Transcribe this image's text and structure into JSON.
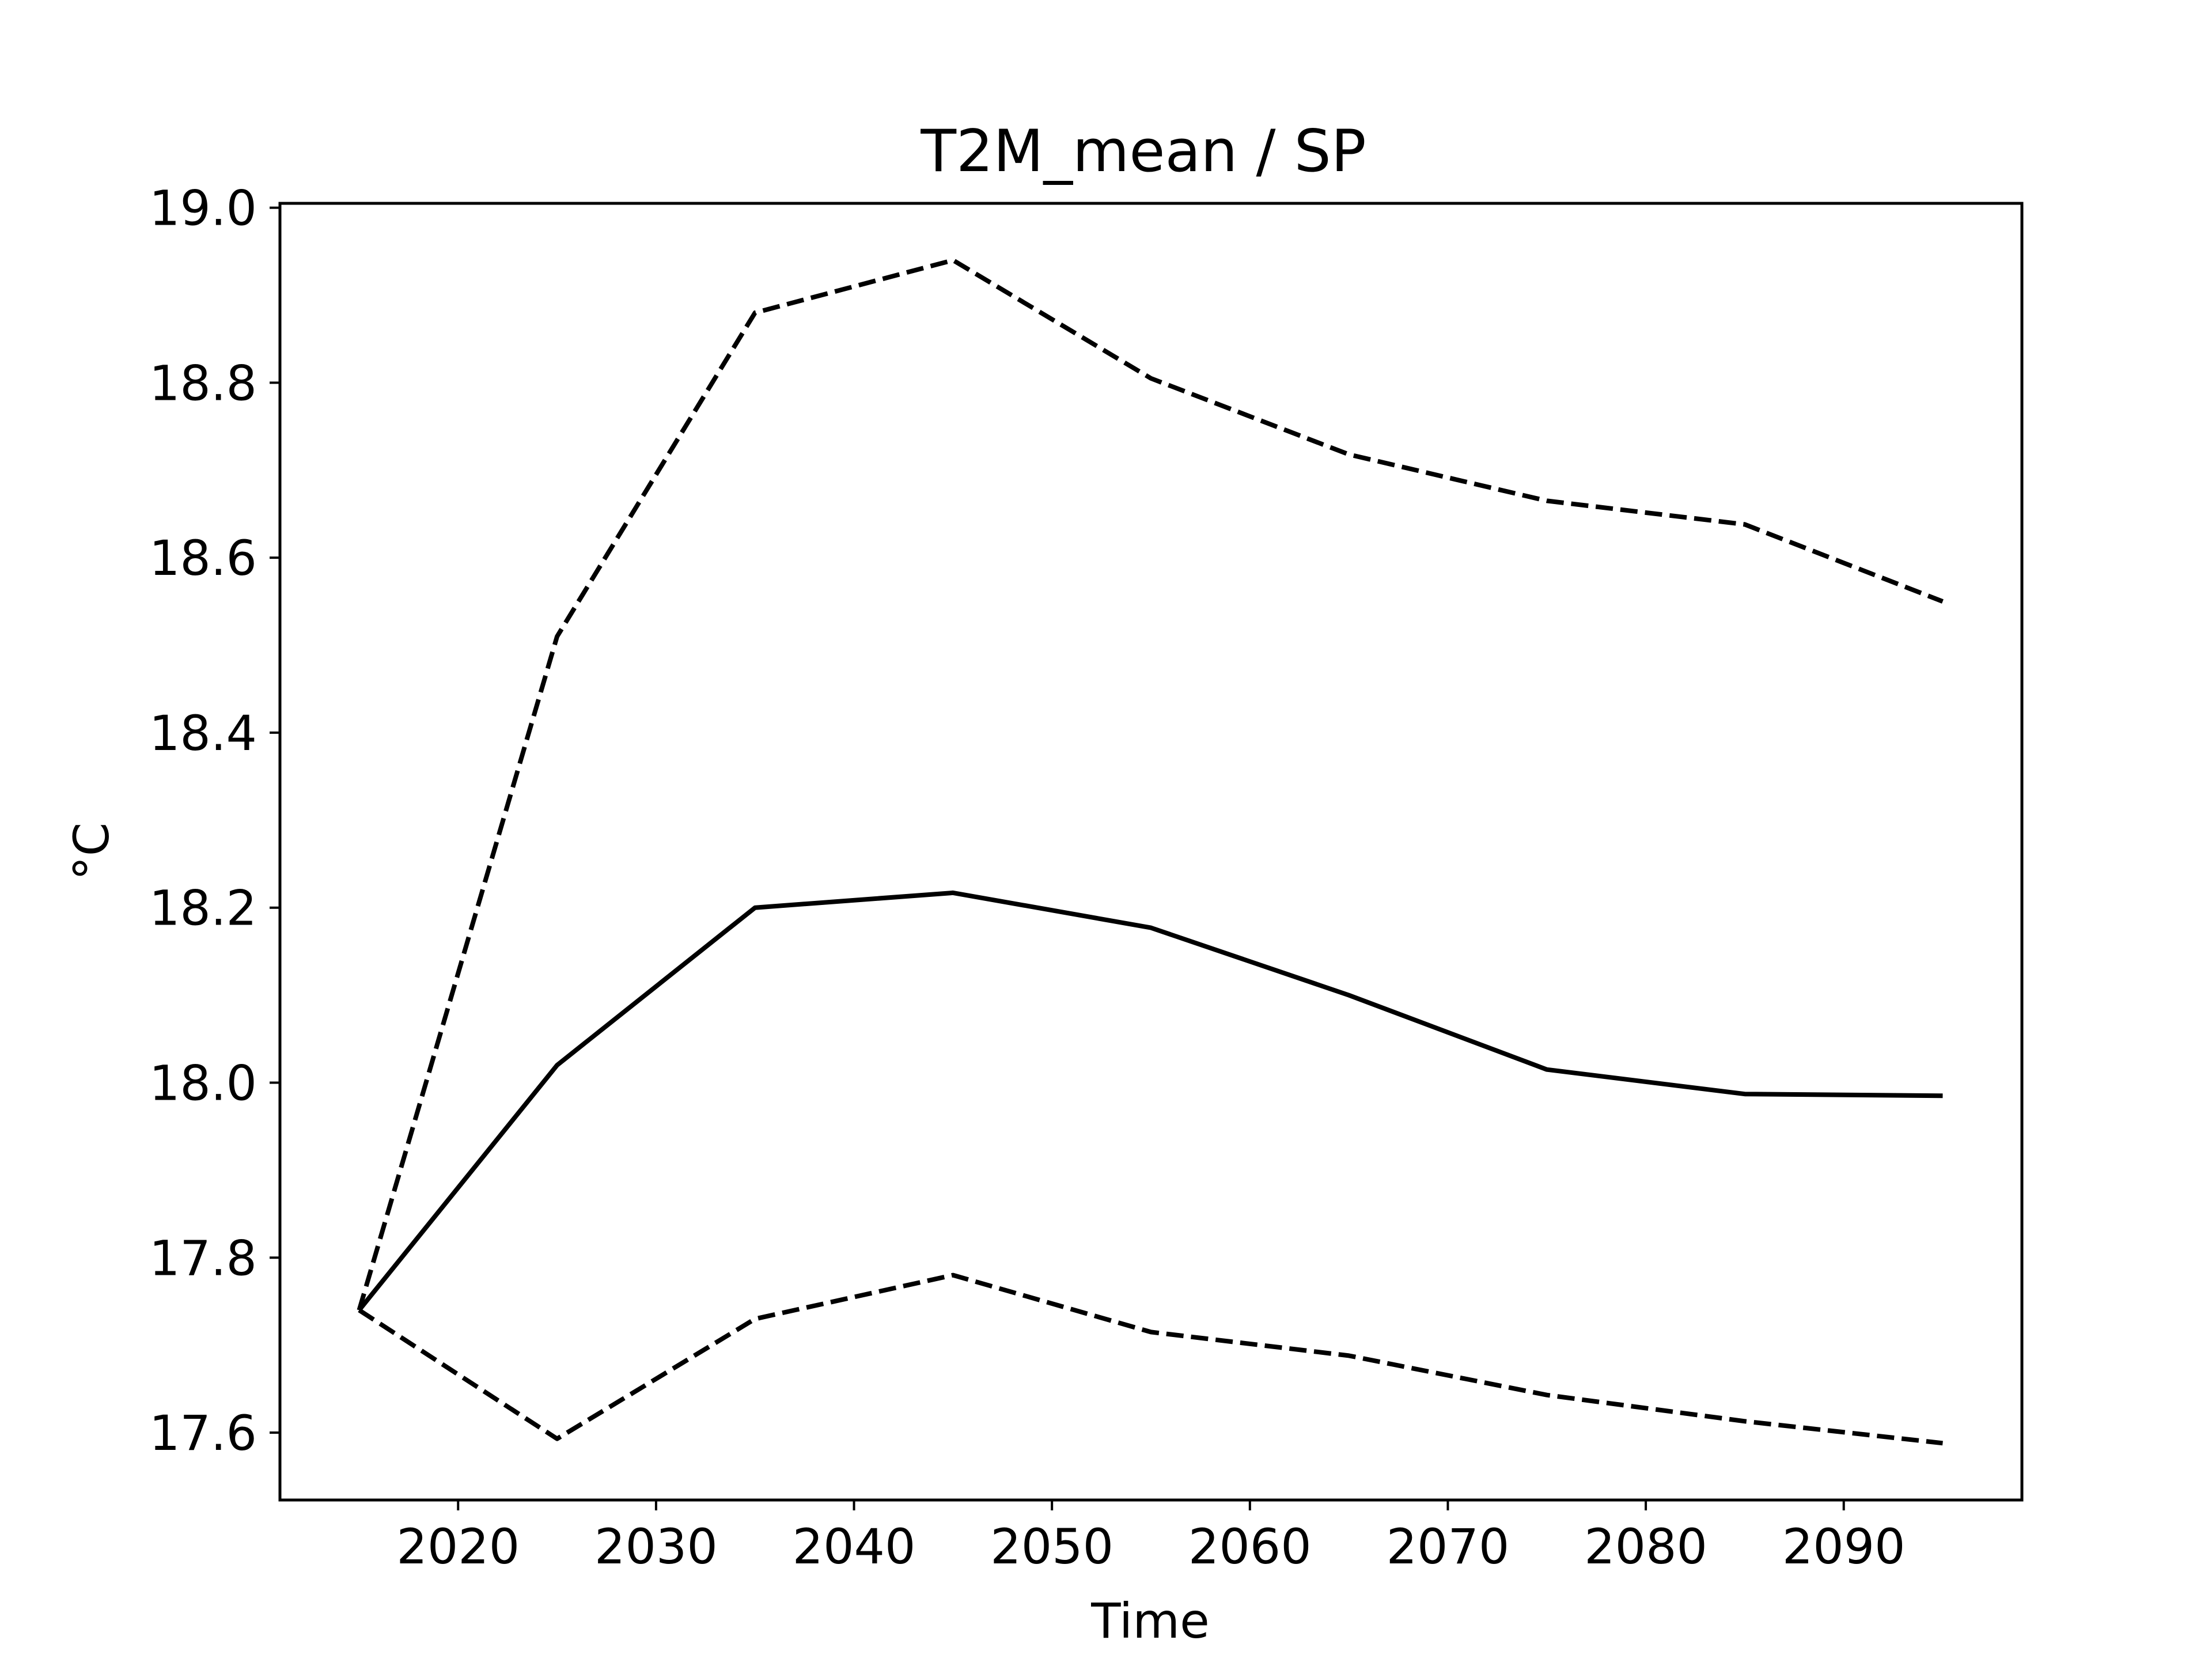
{
  "chart_data": {
    "type": "line",
    "title": "T2M_mean / SP",
    "xlabel": "Time",
    "ylabel": "°C",
    "x": [
      2015,
      2025,
      2035,
      2045,
      2055,
      2065,
      2075,
      2085,
      2095
    ],
    "series": [
      {
        "style": "solid",
        "color": "#000000",
        "values": [
          17.74,
          18.02,
          18.2,
          18.217,
          18.177,
          18.1,
          18.015,
          17.987,
          17.985
        ]
      },
      {
        "style": "dashed",
        "color": "#000000",
        "values": [
          17.74,
          18.51,
          18.88,
          18.94,
          18.805,
          18.718,
          18.665,
          18.638,
          18.55
        ]
      },
      {
        "style": "dashed",
        "color": "#000000",
        "values": [
          17.74,
          17.593,
          17.73,
          17.78,
          17.715,
          17.688,
          17.643,
          17.613,
          17.588
        ]
      }
    ],
    "xlim": [
      2011,
      2099
    ],
    "ylim": [
      17.523,
      19.005
    ],
    "xticks": [
      "2020",
      "2030",
      "2040",
      "2050",
      "2060",
      "2070",
      "2080",
      "2090"
    ],
    "yticks": [
      "17.6",
      "17.8",
      "18.0",
      "18.2",
      "18.4",
      "18.6",
      "18.8",
      "19.0"
    ],
    "grid": false,
    "legend": "none"
  }
}
